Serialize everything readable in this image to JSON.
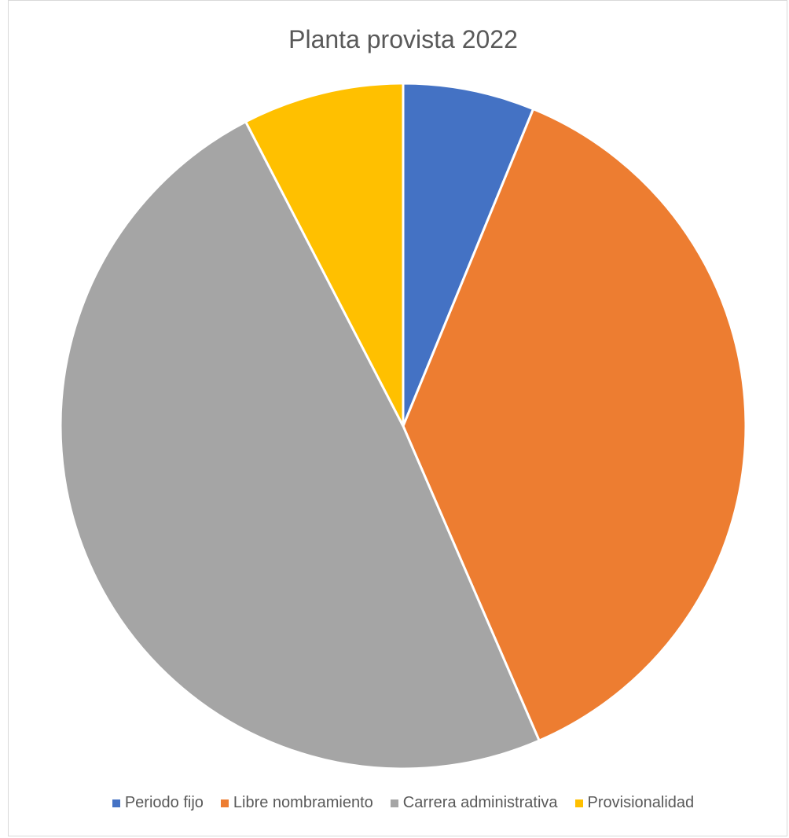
{
  "chart_data": {
    "type": "pie",
    "title": "Planta provista 2022",
    "categories": [
      "Periodo fijo",
      "Libre nombramiento",
      "Carrera administrativa",
      "Provisionalidad"
    ],
    "values": [
      6.2,
      37.3,
      48.9,
      7.6
    ],
    "colors": [
      "#4472C4",
      "#ED7D31",
      "#A5A5A5",
      "#FFC000"
    ],
    "legend_position": "bottom"
  }
}
